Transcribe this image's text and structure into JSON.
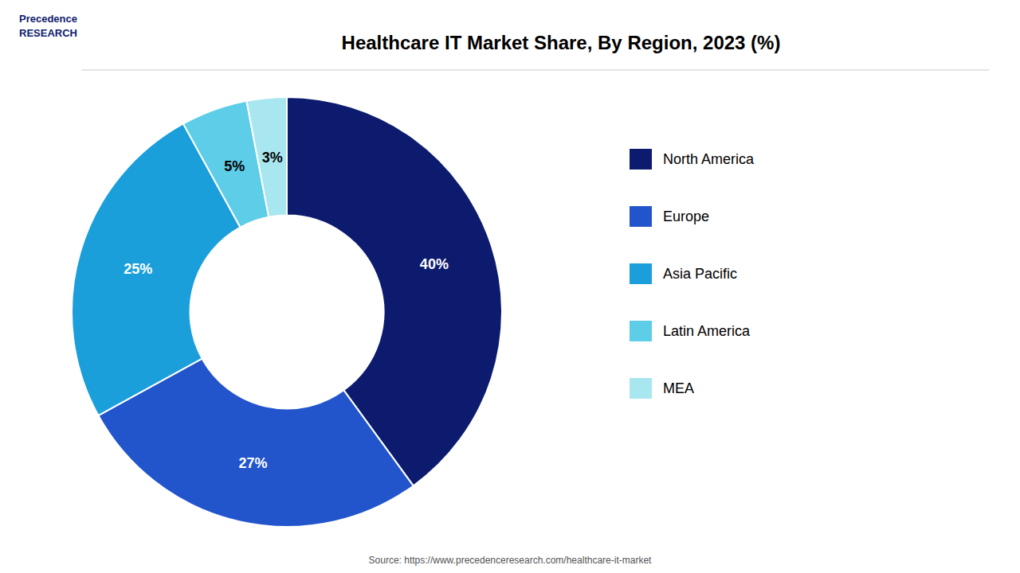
{
  "chart_data": {
    "type": "donut",
    "title": "Healthcare IT Market Share, By Region, 2023 (%)",
    "categories": [
      "North America",
      "Europe",
      "Asia Pacific",
      "Latin America",
      "MEA"
    ],
    "values": [
      40,
      27,
      25,
      5,
      3
    ],
    "value_labels": [
      "40%",
      "27%",
      "25%",
      "5%",
      "3%"
    ],
    "colors": [
      "#0d1b6e",
      "#2255cc",
      "#1a9fdb",
      "#5ecde8",
      "#a8e6f0"
    ],
    "data_labels": true,
    "legend": "right",
    "annotations": [
      "Precedence\nRESEARCH",
      "Source: https://www.precedenceresearch.com/healthcare-it-market"
    ]
  }
}
